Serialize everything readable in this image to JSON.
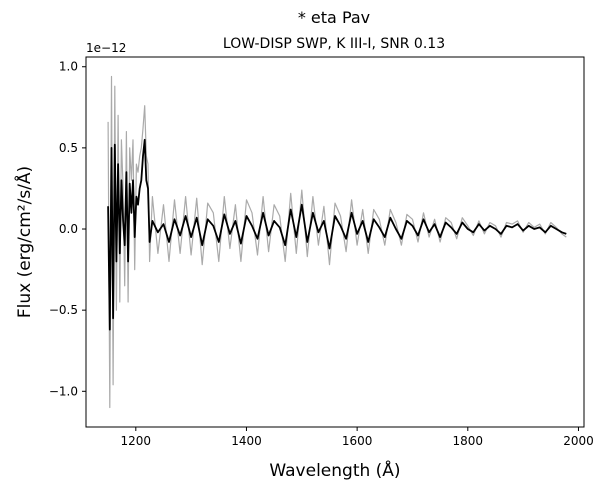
{
  "chart_data": {
    "type": "line",
    "title": "* eta Pav",
    "subtitle": "LOW-DISP SWP, K III-I, SNR 0.13",
    "xlabel": "Wavelength (Å)",
    "ylabel": "Flux (erg/cm²/s/Å)",
    "y_offset_text": "1e−12",
    "xlim": [
      1110,
      2010
    ],
    "ylim": [
      -1.22,
      1.06
    ],
    "x_ticks": [
      1200,
      1400,
      1600,
      1800,
      2000
    ],
    "x_tick_labels": [
      "1200",
      "1400",
      "1600",
      "1800",
      "2000"
    ],
    "y_ticks": [
      -1.0,
      -0.5,
      0.0,
      0.5,
      1.0
    ],
    "y_tick_labels": [
      "−1.0",
      "−0.5",
      "0.0",
      "0.5",
      "1.0"
    ],
    "grid": false,
    "series": [
      {
        "role": "flux",
        "color": "#000000",
        "x": [
          1150,
          1153,
          1156,
          1159,
          1162,
          1165,
          1168,
          1171,
          1174,
          1177,
          1180,
          1183,
          1186,
          1189,
          1192,
          1195,
          1198,
          1201,
          1204,
          1207,
          1210,
          1213,
          1216,
          1219,
          1222,
          1225,
          1230,
          1240,
          1250,
          1260,
          1270,
          1280,
          1290,
          1300,
          1310,
          1320,
          1330,
          1340,
          1350,
          1360,
          1370,
          1380,
          1390,
          1400,
          1410,
          1420,
          1430,
          1440,
          1450,
          1460,
          1470,
          1480,
          1490,
          1500,
          1510,
          1520,
          1530,
          1540,
          1550,
          1560,
          1570,
          1580,
          1590,
          1600,
          1610,
          1620,
          1630,
          1640,
          1650,
          1660,
          1670,
          1680,
          1690,
          1700,
          1710,
          1720,
          1730,
          1740,
          1750,
          1760,
          1770,
          1780,
          1790,
          1800,
          1810,
          1820,
          1830,
          1840,
          1850,
          1860,
          1870,
          1880,
          1890,
          1900,
          1910,
          1920,
          1930,
          1940,
          1950,
          1960,
          1970,
          1978
        ],
        "y": [
          0.14,
          -0.62,
          0.5,
          -0.55,
          0.52,
          -0.2,
          0.4,
          -0.15,
          0.3,
          0.05,
          -0.1,
          0.35,
          -0.2,
          0.28,
          0.1,
          0.3,
          -0.05,
          0.2,
          0.15,
          0.25,
          0.3,
          0.45,
          0.55,
          0.3,
          0.25,
          -0.08,
          0.05,
          -0.02,
          0.03,
          -0.08,
          0.06,
          -0.04,
          0.08,
          -0.05,
          0.07,
          -0.1,
          0.06,
          0.02,
          -0.08,
          0.09,
          -0.03,
          0.05,
          -0.09,
          0.08,
          0.02,
          -0.06,
          0.1,
          -0.04,
          0.05,
          0.01,
          -0.1,
          0.12,
          -0.05,
          0.15,
          -0.08,
          0.1,
          -0.02,
          0.05,
          -0.12,
          0.08,
          0.02,
          -0.06,
          0.1,
          -0.03,
          0.05,
          -0.08,
          0.06,
          0.01,
          -0.05,
          0.07,
          0.0,
          -0.06,
          0.05,
          0.02,
          -0.04,
          0.06,
          -0.02,
          0.03,
          -0.05,
          0.04,
          0.01,
          -0.03,
          0.04,
          0.0,
          -0.02,
          0.03,
          -0.01,
          0.02,
          0.0,
          -0.03,
          0.02,
          0.01,
          0.03,
          -0.01,
          0.02,
          0.0,
          0.01,
          -0.02,
          0.02,
          0.0,
          -0.02,
          -0.03
        ]
      },
      {
        "role": "uncertainty",
        "color": "#aaaaaa",
        "x": [
          1150,
          1153,
          1156,
          1159,
          1162,
          1165,
          1168,
          1171,
          1174,
          1177,
          1180,
          1183,
          1186,
          1189,
          1192,
          1195,
          1198,
          1201,
          1204,
          1207,
          1210,
          1213,
          1216,
          1219,
          1222,
          1225,
          1230,
          1240,
          1250,
          1260,
          1270,
          1280,
          1290,
          1300,
          1310,
          1320,
          1330,
          1340,
          1350,
          1360,
          1370,
          1380,
          1390,
          1400,
          1410,
          1420,
          1430,
          1440,
          1450,
          1460,
          1470,
          1480,
          1490,
          1500,
          1510,
          1520,
          1530,
          1540,
          1550,
          1560,
          1570,
          1580,
          1590,
          1600,
          1610,
          1620,
          1630,
          1640,
          1650,
          1660,
          1670,
          1680,
          1690,
          1700,
          1710,
          1720,
          1730,
          1740,
          1750,
          1760,
          1770,
          1780,
          1790,
          1800,
          1810,
          1820,
          1830,
          1840,
          1850,
          1860,
          1870,
          1880,
          1890,
          1900,
          1910,
          1920,
          1930,
          1940,
          1950,
          1960,
          1970,
          1978
        ],
        "y": [
          0.66,
          -1.1,
          0.94,
          -0.96,
          0.88,
          -0.5,
          0.7,
          -0.45,
          0.55,
          0.25,
          -0.35,
          0.6,
          -0.45,
          0.5,
          0.3,
          0.55,
          -0.25,
          0.4,
          0.35,
          0.45,
          0.5,
          0.62,
          0.76,
          0.45,
          0.4,
          -0.2,
          0.2,
          -0.15,
          0.15,
          -0.2,
          0.18,
          -0.15,
          0.2,
          -0.16,
          0.19,
          -0.22,
          0.16,
          0.1,
          -0.2,
          0.2,
          -0.12,
          0.15,
          -0.2,
          0.18,
          0.1,
          -0.16,
          0.2,
          -0.14,
          0.15,
          0.08,
          -0.2,
          0.22,
          -0.15,
          0.24,
          -0.17,
          0.2,
          -0.1,
          0.14,
          -0.22,
          0.16,
          0.08,
          -0.14,
          0.18,
          -0.1,
          0.12,
          -0.15,
          0.12,
          0.06,
          -0.1,
          0.12,
          0.04,
          -0.1,
          0.09,
          0.06,
          -0.08,
          0.1,
          -0.05,
          0.06,
          -0.08,
          0.07,
          0.04,
          -0.06,
          0.07,
          0.02,
          -0.04,
          0.05,
          -0.03,
          0.04,
          0.02,
          -0.05,
          0.04,
          0.03,
          0.05,
          -0.02,
          0.04,
          0.01,
          0.03,
          -0.03,
          0.04,
          0.01,
          -0.03,
          -0.05
        ]
      }
    ]
  }
}
